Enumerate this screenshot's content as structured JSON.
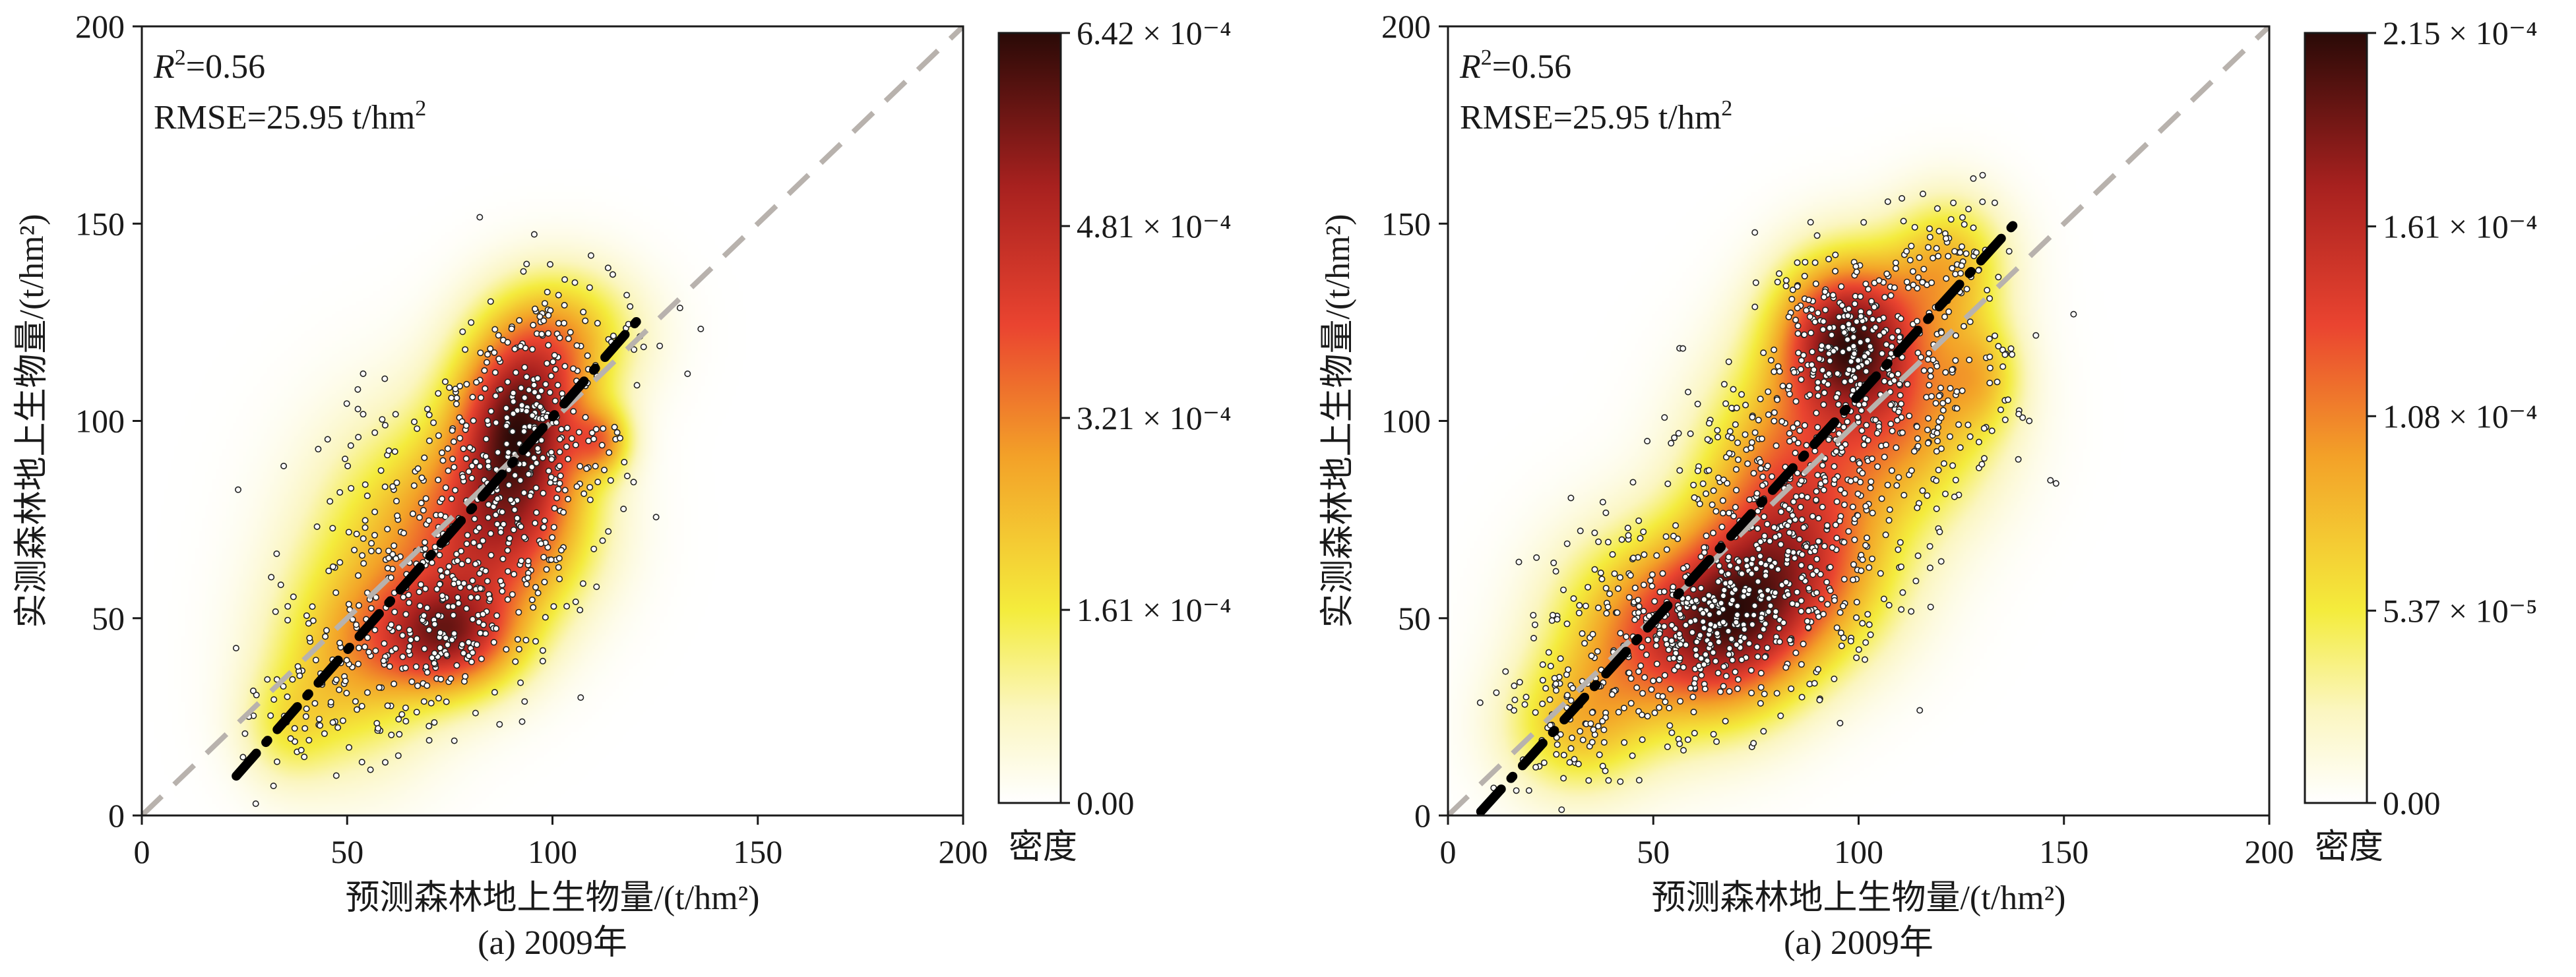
{
  "chart_data": [
    {
      "type": "scatter",
      "title": "",
      "caption": "(a) 2009年",
      "xlabel": "预测森林地上生物量/(t/hm²)",
      "ylabel": "实测森林地上生物量/(t/hm²)",
      "xlim": [
        0,
        200
      ],
      "ylim": [
        0,
        200
      ],
      "xticks": [
        "0",
        "50",
        "100",
        "150",
        "200"
      ],
      "yticks": [
        "0",
        "50",
        "100",
        "150",
        "200"
      ],
      "grid": false,
      "stats": {
        "r2_label": "R",
        "r2_sup": "2",
        "r2_value": "=0.56",
        "rmse_text": "RMSE=25.95 t/hm",
        "rmse_sup": "2"
      },
      "reference_line": {
        "style": "dashed",
        "color": "#b8b2ad",
        "from": [
          0,
          0
        ],
        "to": [
          200,
          200
        ]
      },
      "fit_line": {
        "style": "dash-dot",
        "color": "#000000",
        "x": [
          23,
          122
        ],
        "y": [
          10,
          127
        ]
      },
      "density_clusters": [
        {
          "x": 92,
          "y": 100,
          "sx": 11,
          "sy": 15,
          "w": 1.0
        },
        {
          "x": 75,
          "y": 45,
          "sx": 12,
          "sy": 10,
          "w": 0.75
        },
        {
          "x": 90,
          "y": 72,
          "sx": 14,
          "sy": 15,
          "w": 0.6
        },
        {
          "x": 68,
          "y": 70,
          "sx": 18,
          "sy": 22,
          "w": 0.45
        },
        {
          "x": 50,
          "y": 38,
          "sx": 14,
          "sy": 18,
          "w": 0.4
        },
        {
          "x": 102,
          "y": 122,
          "sx": 13,
          "sy": 12,
          "w": 0.45
        },
        {
          "x": 112,
          "y": 95,
          "sx": 5,
          "sy": 6,
          "w": 0.45
        },
        {
          "x": 35,
          "y": 22,
          "sx": 8,
          "sy": 10,
          "w": 0.2
        }
      ],
      "point_count": 850,
      "colorbar": {
        "label": "密度",
        "ticks": [
          {
            "value": 0,
            "label": "0.00"
          },
          {
            "value": 0.000161,
            "label": "1.61 × 10⁻⁴"
          },
          {
            "value": 0.000321,
            "label": "3.21 × 10⁻⁴"
          },
          {
            "value": 0.000481,
            "label": "4.81 × 10⁻⁴"
          },
          {
            "value": 0.000642,
            "label": "6.42 × 10⁻⁴"
          }
        ],
        "min": 0,
        "max": 0.000642
      }
    },
    {
      "type": "scatter",
      "title": "",
      "caption": "(a) 2009年",
      "xlabel": "预测森林地上生物量/(t/hm²)",
      "ylabel": "实测森林地上生物量/(t/hm²)",
      "xlim": [
        0,
        200
      ],
      "ylim": [
        0,
        200
      ],
      "xticks": [
        "0",
        "50",
        "100",
        "150",
        "200"
      ],
      "yticks": [
        "0",
        "50",
        "100",
        "150",
        "200"
      ],
      "grid": false,
      "stats": {
        "r2_label": "R",
        "r2_sup": "2",
        "r2_value": "=0.56",
        "rmse_text": "RMSE=25.95 t/hm",
        "rmse_sup": "2"
      },
      "reference_line": {
        "style": "dashed",
        "color": "#b8b2ad",
        "from": [
          0,
          0
        ],
        "to": [
          200,
          200
        ]
      },
      "fit_line": {
        "style": "dash-dot",
        "color": "#000000",
        "x": [
          8,
          138
        ],
        "y": [
          1,
          150
        ]
      },
      "density_clusters": [
        {
          "x": 97,
          "y": 122,
          "sx": 12,
          "sy": 14,
          "w": 1.0
        },
        {
          "x": 68,
          "y": 48,
          "sx": 14,
          "sy": 16,
          "w": 0.85
        },
        {
          "x": 82,
          "y": 85,
          "sx": 15,
          "sy": 20,
          "w": 0.6
        },
        {
          "x": 45,
          "y": 45,
          "sx": 15,
          "sy": 18,
          "w": 0.5
        },
        {
          "x": 112,
          "y": 100,
          "sx": 15,
          "sy": 18,
          "w": 0.5
        },
        {
          "x": 122,
          "y": 140,
          "sx": 10,
          "sy": 12,
          "w": 0.45
        },
        {
          "x": 30,
          "y": 22,
          "sx": 12,
          "sy": 12,
          "w": 0.35
        },
        {
          "x": 88,
          "y": 60,
          "sx": 16,
          "sy": 16,
          "w": 0.45
        },
        {
          "x": 130,
          "y": 112,
          "sx": 7,
          "sy": 10,
          "w": 0.3
        }
      ],
      "point_count": 1400,
      "colorbar": {
        "label": "密度",
        "ticks": [
          {
            "value": 0,
            "label": "0.00"
          },
          {
            "value": 5.37e-05,
            "label": "5.37 × 10⁻⁵"
          },
          {
            "value": 0.000108,
            "label": "1.08 × 10⁻⁴"
          },
          {
            "value": 0.000161,
            "label": "1.61 × 10⁻⁴"
          },
          {
            "value": 0.000215,
            "label": "2.15 × 10⁻⁴"
          }
        ],
        "min": 0,
        "max": 0.000215
      }
    }
  ]
}
